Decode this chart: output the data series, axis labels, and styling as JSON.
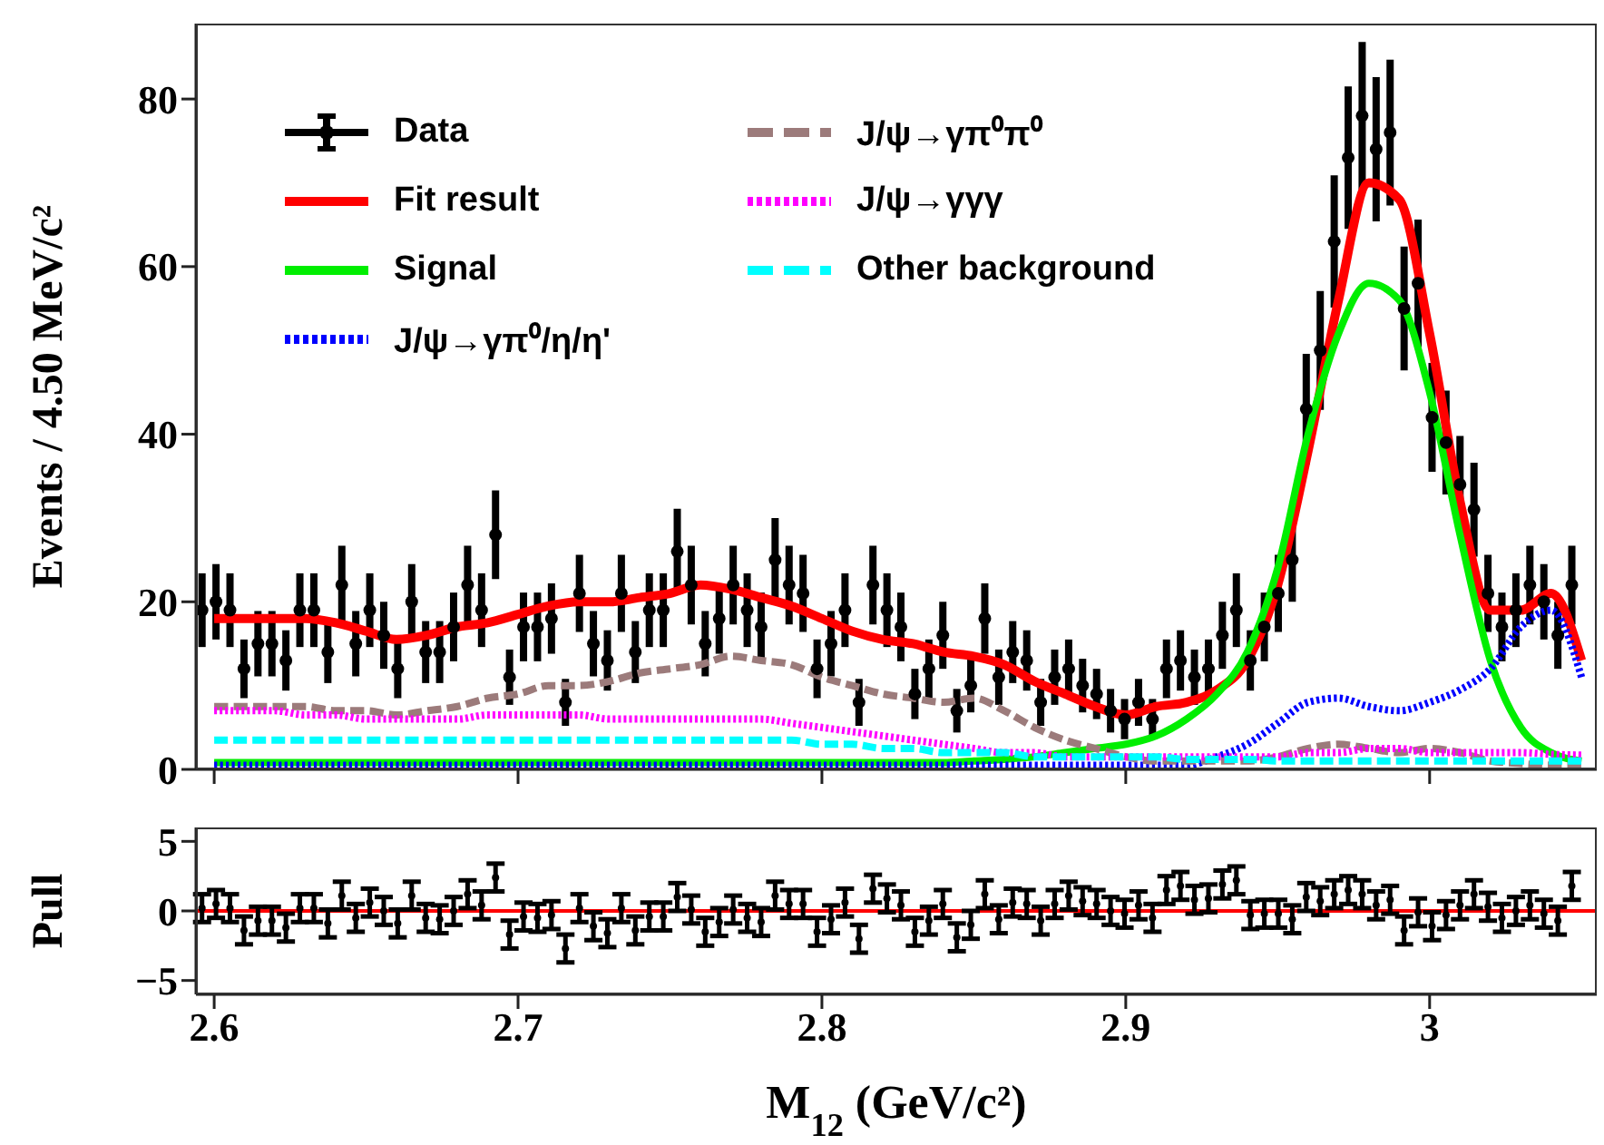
{
  "chart_data": [
    {
      "type": "line",
      "ylabel": "Events / 4.50 MeV/c²",
      "xlim": [
        2.594,
        3.055
      ],
      "xticks": [
        2.6,
        2.7,
        2.8,
        2.9,
        3
      ],
      "ylim": [
        0,
        89
      ],
      "yticks": [
        0,
        20,
        40,
        60,
        80
      ],
      "tick_labels": "y",
      "grid": false,
      "legend": "top left",
      "x": [
        2.6,
        2.61,
        2.62,
        2.63,
        2.64,
        2.65,
        2.66,
        2.67,
        2.68,
        2.69,
        2.7,
        2.71,
        2.72,
        2.73,
        2.74,
        2.75,
        2.76,
        2.77,
        2.78,
        2.79,
        2.8,
        2.81,
        2.82,
        2.83,
        2.84,
        2.85,
        2.86,
        2.87,
        2.88,
        2.89,
        2.9,
        2.91,
        2.92,
        2.93,
        2.94,
        2.95,
        2.96,
        2.97,
        2.98,
        2.99,
        3,
        3.01,
        3.02,
        3.03,
        3.04,
        3.05
      ],
      "series": [
        {
          "name": "Data",
          "type": "scatter",
          "color": "#000000",
          "marker": "circle",
          "x": [
            2.596,
            2.6006,
            2.6052,
            2.6098,
            2.6144,
            2.619,
            2.6236,
            2.6282,
            2.6328,
            2.6374,
            2.642,
            2.6466,
            2.6512,
            2.6558,
            2.6604,
            2.665,
            2.6696,
            2.6742,
            2.6788,
            2.6834,
            2.688,
            2.6926,
            2.6972,
            2.7018,
            2.7064,
            2.711,
            2.7156,
            2.7202,
            2.7248,
            2.7294,
            2.734,
            2.7386,
            2.7432,
            2.7478,
            2.7524,
            2.757,
            2.7616,
            2.7662,
            2.7708,
            2.7754,
            2.78,
            2.7846,
            2.7892,
            2.7938,
            2.7984,
            2.803,
            2.8076,
            2.8122,
            2.8168,
            2.8214,
            2.826,
            2.8306,
            2.8352,
            2.8398,
            2.8444,
            2.849,
            2.8536,
            2.8582,
            2.8628,
            2.8674,
            2.872,
            2.8766,
            2.8812,
            2.8858,
            2.8904,
            2.895,
            2.8996,
            2.9042,
            2.9088,
            2.9134,
            2.918,
            2.9226,
            2.9272,
            2.9318,
            2.9364,
            2.941,
            2.9456,
            2.9502,
            2.9548,
            2.9594,
            2.964,
            2.9686,
            2.9732,
            2.9778,
            2.9824,
            2.987,
            2.9916,
            2.9962,
            3.0008,
            3.0054,
            3.01,
            3.0146,
            3.0192,
            3.0238,
            3.0284,
            3.033,
            3.0376,
            3.0422,
            3.0468
          ],
          "values": [
            19,
            20,
            19,
            12,
            15,
            15,
            13,
            19,
            19,
            14,
            22,
            15,
            19,
            16,
            12,
            20,
            14,
            14,
            17,
            22,
            19,
            28,
            11,
            17,
            17,
            18,
            8,
            21,
            15,
            13,
            21,
            14,
            19,
            19,
            26,
            22,
            15,
            18,
            22,
            19,
            17,
            25,
            22,
            21,
            12,
            15,
            19,
            8,
            22,
            19,
            17,
            9,
            12,
            16,
            7,
            10,
            18,
            11,
            14,
            13,
            8,
            11,
            12,
            10,
            9,
            7,
            6,
            8,
            6,
            12,
            13,
            11,
            12,
            16,
            19,
            13,
            17,
            21,
            25,
            43,
            50,
            63,
            73,
            78,
            74,
            76,
            55,
            58,
            42,
            39,
            34,
            31,
            21,
            17,
            19,
            22,
            20,
            16,
            22
          ],
          "errors": [
            4.4,
            4.5,
            4.4,
            3.5,
            3.9,
            3.9,
            3.6,
            4.4,
            4.4,
            3.7,
            4.7,
            3.9,
            4.4,
            4,
            3.5,
            4.5,
            3.7,
            3.7,
            4.1,
            4.7,
            4.4,
            5.3,
            3.3,
            4.1,
            4.1,
            4.2,
            2.8,
            4.6,
            3.9,
            3.6,
            4.6,
            3.7,
            4.4,
            4.4,
            5.1,
            4.7,
            3.9,
            4.2,
            4.7,
            4.4,
            4.1,
            5,
            4.7,
            4.6,
            3.5,
            3.9,
            4.4,
            2.8,
            4.7,
            4.4,
            4.1,
            3,
            3.5,
            4,
            2.6,
            3.2,
            4.2,
            3.3,
            3.7,
            3.6,
            2.8,
            3.3,
            3.5,
            3.2,
            3,
            2.6,
            2.4,
            2.8,
            2.4,
            3.5,
            3.6,
            3.3,
            3.5,
            4,
            4.4,
            3.6,
            4.1,
            4.6,
            5,
            6.6,
            7.1,
            7.9,
            8.5,
            8.8,
            8.6,
            8.7,
            7.4,
            7.6,
            6.5,
            6.2,
            5.8,
            5.6,
            4.6,
            4.1,
            4.4,
            4.7,
            4.5,
            4,
            4.7
          ]
        },
        {
          "name": "Fit result",
          "color": "#ff0000",
          "line_style": "solid",
          "marker": "none",
          "values": [
            18,
            18,
            18,
            18,
            17.5,
            16.5,
            15.5,
            16,
            17,
            17.5,
            18.5,
            19.5,
            20,
            20,
            20.5,
            21,
            22,
            21.5,
            20.5,
            19.5,
            18,
            16.5,
            15.5,
            15,
            14,
            13.5,
            12.5,
            10.5,
            9,
            7.5,
            6.5,
            7.5,
            8,
            9.5,
            13,
            22,
            38,
            56,
            70,
            68,
            52,
            32,
            19,
            19,
            21,
            13
          ]
        },
        {
          "name": "Signal",
          "color": "#00ee00",
          "line_style": "solid",
          "marker": "none",
          "values": [
            0.8,
            0.8,
            0.8,
            0.8,
            0.8,
            0.8,
            0.8,
            0.8,
            0.8,
            0.8,
            0.8,
            0.8,
            0.8,
            0.8,
            0.8,
            0.8,
            0.8,
            0.8,
            0.8,
            0.8,
            0.8,
            0.8,
            0.8,
            0.8,
            0.8,
            1,
            1.2,
            1.5,
            2,
            2.5,
            3,
            4,
            6,
            9,
            14,
            24,
            40,
            52,
            58,
            56,
            45,
            28,
            13,
            5,
            2,
            1
          ]
        },
        {
          "name": "J/ψ→γπ⁰/η/η'",
          "color": "#0000ff",
          "line_style": "dotted",
          "marker": "none",
          "values": [
            0.5,
            0.5,
            0.5,
            0.5,
            0.5,
            0.5,
            0.5,
            0.5,
            0.5,
            0.5,
            0.5,
            0.5,
            0.5,
            0.5,
            0.5,
            0.5,
            0.5,
            0.5,
            0.5,
            0.5,
            0.5,
            0.5,
            0.5,
            0.5,
            0.5,
            0.5,
            0.5,
            0.5,
            0.5,
            0.5,
            0.5,
            0.5,
            0.5,
            1.5,
            3,
            5.5,
            8,
            8.5,
            7.5,
            7,
            8,
            9.5,
            12,
            17,
            19,
            11
          ]
        },
        {
          "name": "J/ψ→γπ⁰π⁰",
          "color": "#9c7b7b",
          "line_style": "dashed",
          "marker": "none",
          "values": [
            7.5,
            7.5,
            7.5,
            7.5,
            7,
            7,
            6.5,
            7,
            7.5,
            8.5,
            9,
            10,
            10,
            10.5,
            11.5,
            12,
            12.5,
            13.5,
            13,
            12.5,
            11,
            10,
            9,
            8.5,
            8,
            8.5,
            7,
            5,
            3.5,
            2.5,
            1.5,
            1,
            1,
            1,
            1,
            1.5,
            2.5,
            3,
            2.5,
            2,
            2.5,
            2,
            1,
            0.7,
            0.5,
            0.5
          ]
        },
        {
          "name": "J/ψ→γγγ",
          "color": "#ff00ff",
          "line_style": "dotted",
          "marker": "none",
          "values": [
            7,
            7,
            7,
            6.5,
            6.5,
            6,
            6,
            6,
            6,
            6.5,
            6.5,
            6.5,
            6.5,
            6,
            6,
            6,
            6,
            6,
            6,
            5.5,
            5,
            4.5,
            4,
            3.5,
            3,
            2.5,
            2,
            2,
            1.5,
            1.5,
            1.5,
            1.5,
            1.5,
            1.5,
            1.5,
            1.5,
            2,
            2,
            2.5,
            2.5,
            2,
            2,
            2,
            2,
            1.8,
            1.7
          ]
        },
        {
          "name": "Other background",
          "color": "#00ffff",
          "line_style": "dashed",
          "marker": "none",
          "values": [
            3.5,
            3.5,
            3.5,
            3.5,
            3.5,
            3.5,
            3.5,
            3.5,
            3.5,
            3.5,
            3.5,
            3.5,
            3.5,
            3.5,
            3.5,
            3.5,
            3.5,
            3.5,
            3.5,
            3.5,
            3,
            3,
            2.5,
            2.5,
            2,
            2,
            2,
            1.5,
            1.5,
            1.5,
            1.5,
            1.5,
            1.2,
            1.2,
            1.2,
            1,
            1,
            1,
            1,
            1,
            1,
            1,
            1,
            1,
            1,
            1
          ]
        }
      ]
    },
    {
      "type": "scatter",
      "ylabel": "Pull",
      "xlabel": "M$_{12}$ (GeV/c²)",
      "xlim": [
        2.594,
        3.055
      ],
      "xticks": [
        2.6,
        2.7,
        2.8,
        2.9,
        3
      ],
      "ylim": [
        -6,
        6
      ],
      "yticks": [
        {
          "value": -5,
          "label": "−5"
        },
        0,
        5
      ],
      "grid": false,
      "legend": false,
      "marker": "circle",
      "ref_lines": [
        {
          "axis": "y",
          "value": 0,
          "color": "#ff0000",
          "line_style": "solid"
        }
      ],
      "x": [
        2.596,
        2.6006,
        2.6052,
        2.6098,
        2.6144,
        2.619,
        2.6236,
        2.6282,
        2.6328,
        2.6374,
        2.642,
        2.6466,
        2.6512,
        2.6558,
        2.6604,
        2.665,
        2.6696,
        2.6742,
        2.6788,
        2.6834,
        2.688,
        2.6926,
        2.6972,
        2.7018,
        2.7064,
        2.711,
        2.7156,
        2.7202,
        2.7248,
        2.7294,
        2.734,
        2.7386,
        2.7432,
        2.7478,
        2.7524,
        2.757,
        2.7616,
        2.7662,
        2.7708,
        2.7754,
        2.78,
        2.7846,
        2.7892,
        2.7938,
        2.7984,
        2.803,
        2.8076,
        2.8122,
        2.8168,
        2.8214,
        2.826,
        2.8306,
        2.8352,
        2.8398,
        2.8444,
        2.849,
        2.8536,
        2.8582,
        2.8628,
        2.8674,
        2.872,
        2.8766,
        2.8812,
        2.8858,
        2.8904,
        2.895,
        2.8996,
        2.9042,
        2.9088,
        2.9134,
        2.918,
        2.9226,
        2.9272,
        2.9318,
        2.9364,
        2.941,
        2.9456,
        2.9502,
        2.9548,
        2.9594,
        2.964,
        2.9686,
        2.9732,
        2.9778,
        2.9824,
        2.987,
        2.9916,
        2.9962,
        3.0008,
        3.0054,
        3.01,
        3.0146,
        3.0192,
        3.0238,
        3.0284,
        3.033,
        3.0376,
        3.0422,
        3.0468
      ],
      "series": [
        {
          "color": "#000000",
          "values": [
            0.2,
            0.5,
            0.2,
            -1.4,
            -0.7,
            -0.7,
            -1.2,
            0.2,
            0.2,
            -0.9,
            1.1,
            -0.5,
            0.6,
            0,
            -0.9,
            1.1,
            -0.5,
            -0.6,
            0,
            1.2,
            0.4,
            2.4,
            -1.7,
            -0.4,
            -0.5,
            -0.3,
            -2.7,
            0.2,
            -1.1,
            -1.6,
            0.2,
            -1.4,
            -0.4,
            -0.4,
            1.0,
            0.1,
            -1.5,
            -0.8,
            0.1,
            -0.5,
            -0.8,
            1.1,
            0.5,
            0.5,
            -1.5,
            -0.6,
            0.6,
            -2.0,
            1.6,
            0.9,
            0.4,
            -1.5,
            -0.7,
            0.5,
            -1.9,
            -1.0,
            1.2,
            -0.6,
            0.6,
            0.5,
            -0.7,
            0.5,
            1.1,
            0.7,
            0.5,
            0,
            -0.2,
            0.4,
            -0.5,
            1.5,
            1.8,
            0.8,
            0.9,
            1.9,
            2.2,
            -0.3,
            -0.2,
            -0.2,
            -0.6,
            1.0,
            0.7,
            1.2,
            1.5,
            1.2,
            0.4,
            0.8,
            -1.4,
            -0.1,
            -1.1,
            -0.3,
            0.4,
            1.2,
            0.3,
            -0.5,
            0,
            0.4,
            -0.2,
            -0.7,
            1.8
          ],
          "errors": [
            1,
            1,
            1,
            1,
            1,
            1,
            1,
            1,
            1,
            1,
            1,
            1,
            1,
            1,
            1,
            1,
            1,
            1,
            1,
            1,
            1,
            1,
            1,
            1,
            1,
            1,
            1,
            1,
            1,
            1,
            1,
            1,
            1,
            1,
            1,
            1,
            1,
            1,
            1,
            1,
            1,
            1,
            1,
            1,
            1,
            1,
            1,
            1,
            1,
            1,
            1,
            1,
            1,
            1,
            1,
            1,
            1,
            1,
            1,
            1,
            1,
            1,
            1,
            1,
            1,
            1,
            1,
            1,
            1,
            1,
            1,
            1,
            1,
            1,
            1,
            1,
            1,
            1,
            1,
            1,
            1,
            1,
            1,
            1,
            1,
            1,
            1,
            1,
            1,
            1,
            1,
            1,
            1,
            1,
            1,
            1,
            1,
            1,
            1
          ]
        }
      ]
    }
  ]
}
